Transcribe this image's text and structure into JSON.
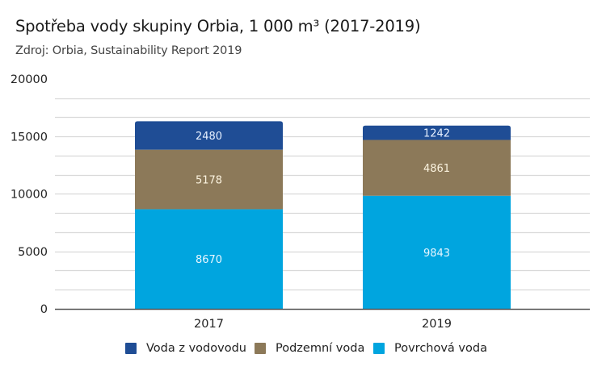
{
  "chart_data": {
    "type": "bar",
    "stacked": true,
    "title": "Spotřeba vody skupiny Orbia, 1 000 m³ (2017-2019)",
    "subtitle": "Zdroj: Orbia, Sustainability Report 2019",
    "xlabel": "",
    "ylabel": "",
    "ylim": [
      0,
      20000
    ],
    "yticks": [
      {
        "value": 0,
        "label": "0"
      },
      {
        "value": 5000,
        "label": "5000"
      },
      {
        "value": 10000,
        "label": "10000"
      },
      {
        "value": 15000,
        "label": "15000"
      },
      {
        "value": 20000,
        "label": "20000"
      }
    ],
    "minor_grid_step": 1666.67,
    "grid": true,
    "categories": [
      "2017",
      "2019"
    ],
    "series": [
      {
        "name": "Povrchová voda",
        "color": "#00a5df",
        "values": [
          8670,
          9843
        ],
        "labels": [
          "8670",
          "9843"
        ]
      },
      {
        "name": "Podzemní voda",
        "color": "#8c7959",
        "values": [
          5178,
          4861
        ],
        "labels": [
          "5178",
          "4861"
        ]
      },
      {
        "name": "Voda z vodovodu",
        "color": "#1f4d95",
        "values": [
          2480,
          1242
        ],
        "labels": [
          "2480",
          "1242"
        ]
      }
    ],
    "legend": {
      "position": "bottom",
      "order": [
        "Voda z vodovodu",
        "Podzemní voda",
        "Povrchová voda"
      ]
    }
  }
}
